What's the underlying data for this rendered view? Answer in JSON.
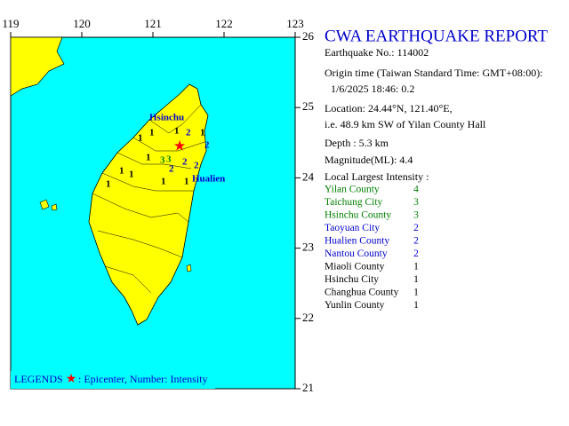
{
  "map": {
    "lon_ticks": [
      119,
      120,
      121,
      122,
      123
    ],
    "lat_ticks": [
      26,
      25,
      24,
      23,
      22,
      21
    ],
    "labels": [
      "Hsinchu",
      "Hualien",
      "1",
      "1",
      "1",
      "1",
      "1",
      "1",
      "1",
      "1",
      "1",
      "1",
      "2",
      "2",
      "2",
      "2",
      "2",
      "3",
      "3"
    ],
    "label_colors": [
      "#0000cc",
      "#0000cc",
      "#000000",
      "#000000",
      "#000000",
      "#000000",
      "#000000",
      "#000000",
      "#000000",
      "#000000",
      "#000000",
      "#000000",
      "#0000cc",
      "#0000cc",
      "#0000cc",
      "#0000cc",
      "#0000cc",
      "#008000",
      "#008000"
    ],
    "legend": {
      "title": "LEGENDS",
      "text": ": Epicenter, Number: Intensity"
    }
  },
  "report": {
    "title": "CWA EARTHQUAKE REPORT",
    "lines": [
      "Earthquake No.: 114002",
      "Origin time (Taiwan Standard Time: GMT+08:00):",
      "1/6/2025 18:46: 0.2",
      "Location: 24.44°N, 121.40°E,",
      "i.e. 48.9 km SW of Yilan County Hall",
      "Depth : 5.3 km",
      "Magnitude(ML): 4.4",
      "Local Largest Intensity :"
    ],
    "intensity": [
      [
        "Yilan County",
        4
      ],
      [
        "Taichung City",
        3
      ],
      [
        "Hsinchu County",
        3
      ],
      [
        "Taoyuan City",
        2
      ],
      [
        "Hualien County",
        2
      ],
      [
        "Nantou County",
        2
      ],
      [
        "Miaoli County",
        1
      ],
      [
        "Hsinchu City",
        1
      ],
      [
        "Changhua County",
        1
      ],
      [
        "Yunlin County",
        1
      ]
    ],
    "colors": {
      "4": "#008000",
      "3": "#008000",
      "2": "#0000cc",
      "1": "#000000"
    }
  }
}
